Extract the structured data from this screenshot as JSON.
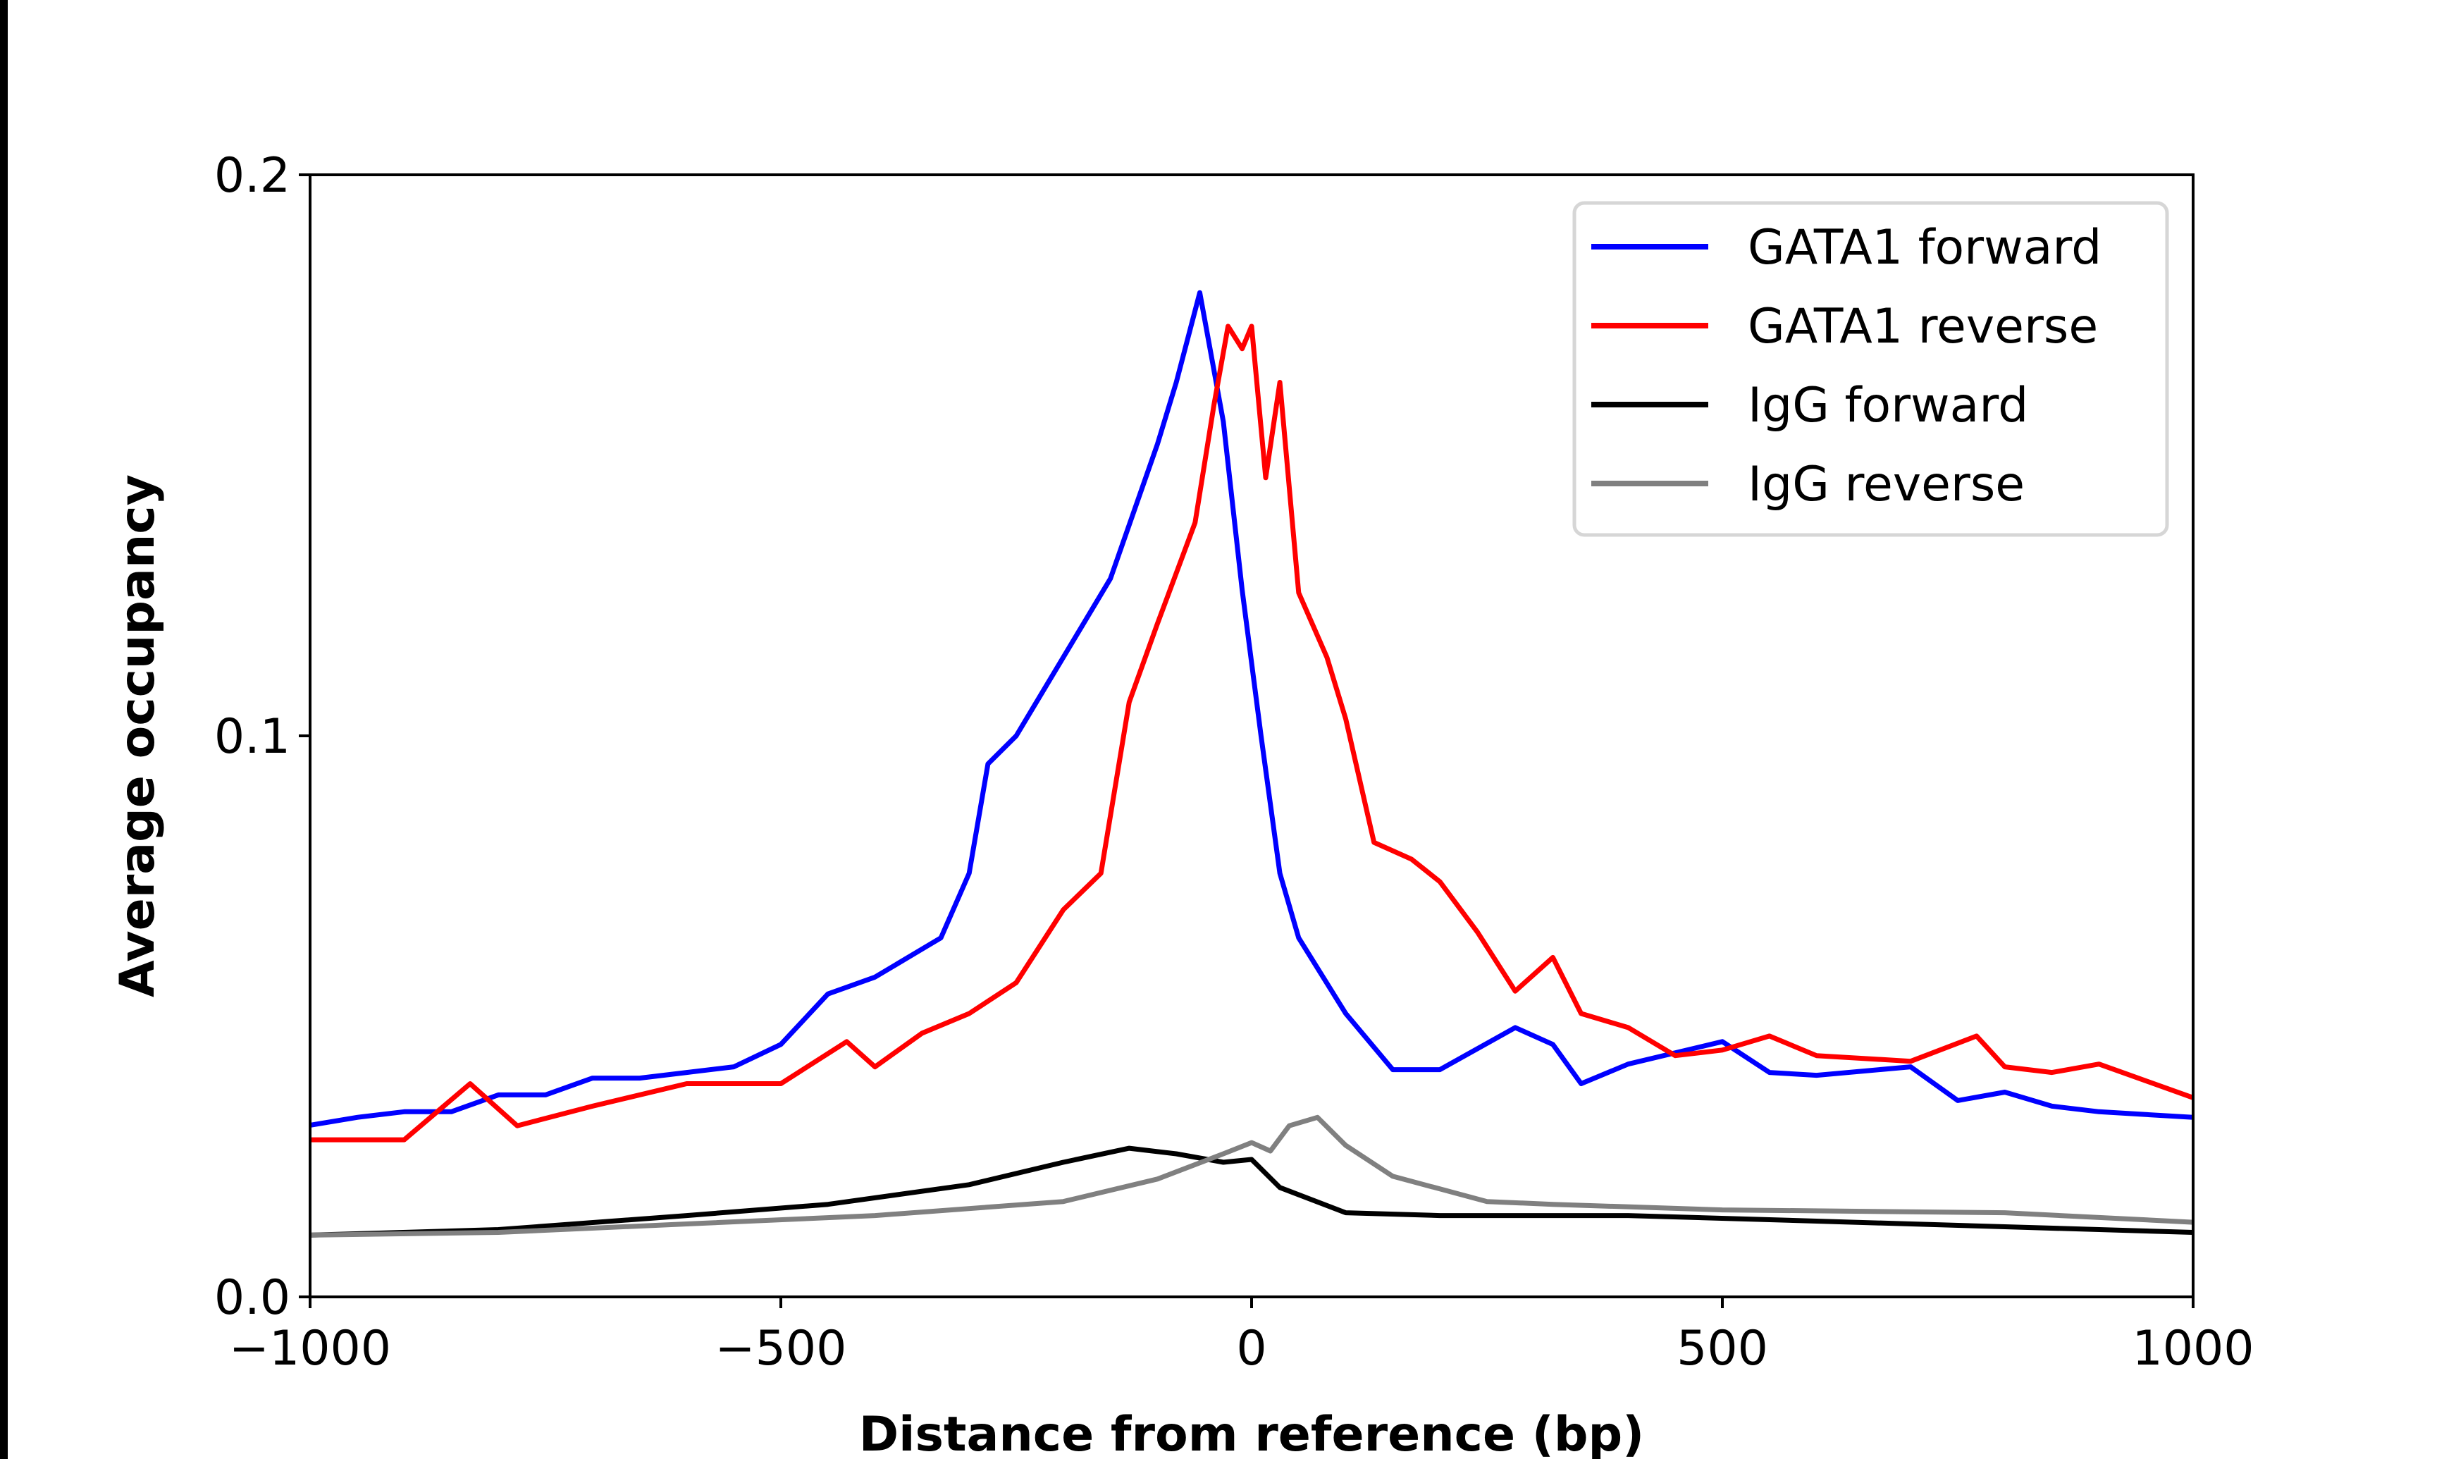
{
  "chart_data": {
    "type": "line",
    "title": "",
    "xlabel": "Distance from reference (bp)",
    "ylabel": "Average occupancy",
    "xlim": [
      -1000,
      1000
    ],
    "ylim": [
      0.0,
      0.2
    ],
    "xticks": [
      -1000,
      -500,
      0,
      500,
      1000
    ],
    "xtick_labels": [
      "−1000",
      "−500",
      "0",
      "500",
      "1000"
    ],
    "yticks": [
      0.0,
      0.1,
      0.2
    ],
    "ytick_labels": [
      "0.0",
      "0.1",
      "0.2"
    ],
    "grid": false,
    "legend_position": "top-right",
    "series": [
      {
        "name": "GATA1 forward",
        "color": "#0000ff",
        "x": [
          -1000,
          -950,
          -900,
          -850,
          -800,
          -750,
          -700,
          -650,
          -600,
          -550,
          -500,
          -450,
          -400,
          -350,
          -330,
          -300,
          -280,
          -250,
          -200,
          -150,
          -100,
          -80,
          -55,
          -30,
          -10,
          10,
          30,
          50,
          100,
          150,
          200,
          280,
          320,
          350,
          400,
          500,
          550,
          600,
          700,
          750,
          800,
          850,
          900,
          1000
        ],
        "y": [
          0.0306,
          0.032,
          0.033,
          0.033,
          0.036,
          0.036,
          0.039,
          0.039,
          0.04,
          0.041,
          0.045,
          0.054,
          0.057,
          0.062,
          0.064,
          0.0755,
          0.095,
          0.1,
          0.114,
          0.128,
          0.152,
          0.163,
          0.179,
          0.156,
          0.126,
          0.1,
          0.0755,
          0.064,
          0.0505,
          0.0405,
          0.0405,
          0.048,
          0.045,
          0.038,
          0.0415,
          0.0455,
          0.04,
          0.0395,
          0.041,
          0.035,
          0.0365,
          0.034,
          0.033,
          0.032
        ]
      },
      {
        "name": "GATA1 reverse",
        "color": "#ff0000",
        "x": [
          -1000,
          -900,
          -830,
          -780,
          -700,
          -600,
          -500,
          -430,
          -400,
          -350,
          -300,
          -250,
          -200,
          -160,
          -130,
          -100,
          -60,
          -40,
          -25,
          -10,
          0,
          15,
          30,
          50,
          80,
          100,
          130,
          170,
          200,
          240,
          280,
          320,
          350,
          400,
          450,
          500,
          550,
          600,
          700,
          770,
          800,
          850,
          900,
          1000
        ],
        "y": [
          0.028,
          0.028,
          0.038,
          0.0305,
          0.034,
          0.038,
          0.038,
          0.0455,
          0.041,
          0.047,
          0.0505,
          0.056,
          0.069,
          0.0755,
          0.106,
          0.12,
          0.138,
          0.159,
          0.173,
          0.169,
          0.173,
          0.146,
          0.163,
          0.1255,
          0.114,
          0.103,
          0.081,
          0.078,
          0.074,
          0.065,
          0.0545,
          0.0605,
          0.0505,
          0.048,
          0.043,
          0.044,
          0.0465,
          0.043,
          0.042,
          0.0465,
          0.041,
          0.04,
          0.0415,
          0.0355
        ]
      },
      {
        "name": "IgG forward",
        "color": "#000000",
        "x": [
          -1000,
          -800,
          -600,
          -450,
          -300,
          -200,
          -130,
          -80,
          -30,
          0,
          30,
          100,
          200,
          400,
          600,
          800,
          1000
        ],
        "y": [
          0.011,
          0.012,
          0.0145,
          0.0165,
          0.02,
          0.024,
          0.0265,
          0.0255,
          0.024,
          0.0245,
          0.0195,
          0.015,
          0.0145,
          0.0145,
          0.0135,
          0.0125,
          0.0115
        ]
      },
      {
        "name": "IgG reverse",
        "color": "#808080",
        "x": [
          -1000,
          -800,
          -600,
          -400,
          -200,
          -100,
          -30,
          0,
          20,
          40,
          70,
          100,
          150,
          250,
          320,
          500,
          800,
          1000
        ],
        "y": [
          0.011,
          0.0115,
          0.013,
          0.0145,
          0.017,
          0.021,
          0.0255,
          0.0275,
          0.026,
          0.0305,
          0.032,
          0.027,
          0.0215,
          0.017,
          0.0165,
          0.0155,
          0.015,
          0.0133
        ]
      }
    ]
  }
}
